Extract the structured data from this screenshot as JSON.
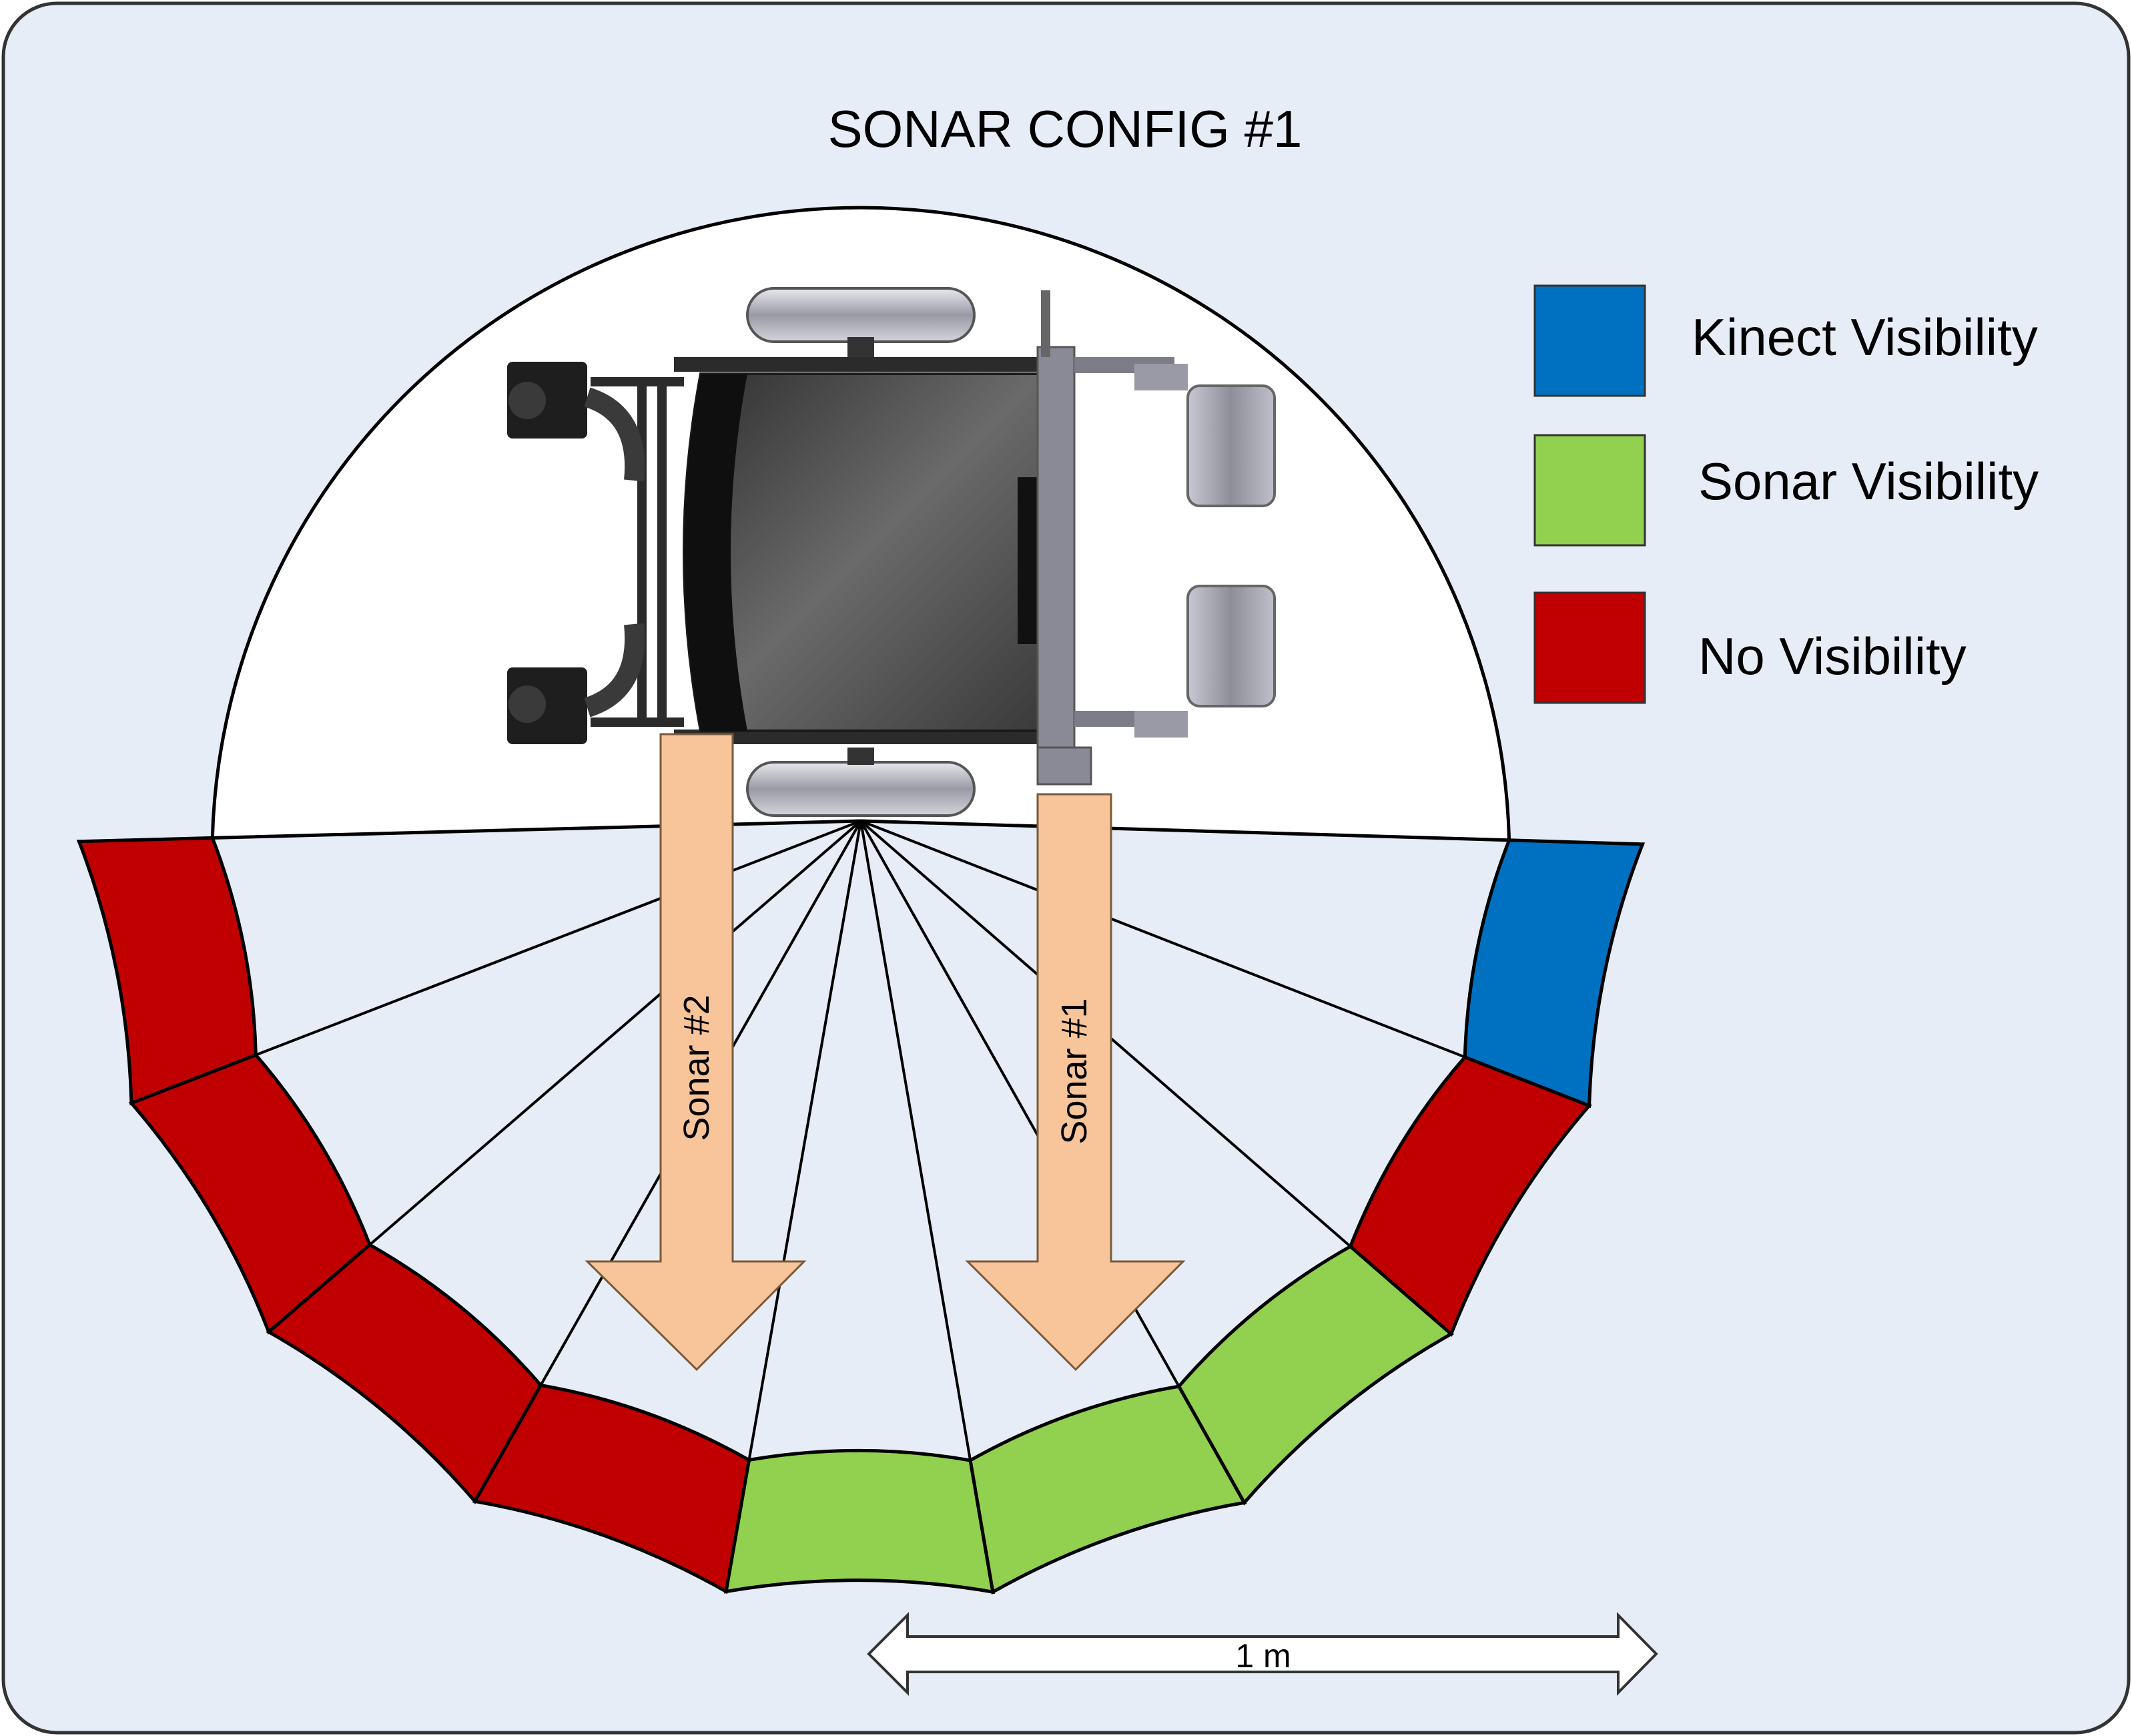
{
  "title": "SONAR CONFIG #1",
  "legend": [
    {
      "label": "Kinect Visibility",
      "color": "#0070C0"
    },
    {
      "label": "Sonar Visibility",
      "color": "#92D050"
    },
    {
      "label": "No Visibility",
      "color": "#C00000"
    }
  ],
  "sonars": [
    {
      "label": "Sonar #2",
      "arrow_color": "#F8C49A"
    },
    {
      "label": "Sonar #1",
      "arrow_color": "#F8C49A"
    }
  ],
  "scale_bar": {
    "label": "1 m"
  },
  "colors": {
    "background": "#E6EDF7",
    "kinect": "#0070C0",
    "sonar": "#92D050",
    "none": "#C00000",
    "sector_fill": "#FFFFFF",
    "arrow": "#F8C49A"
  },
  "outer_ring_segments": [
    "none",
    "none",
    "none",
    "none",
    "sonar",
    "sonar",
    "sonar",
    "none",
    "kinect"
  ],
  "wheelchair_icon": "wheelchair-top-view-icon"
}
